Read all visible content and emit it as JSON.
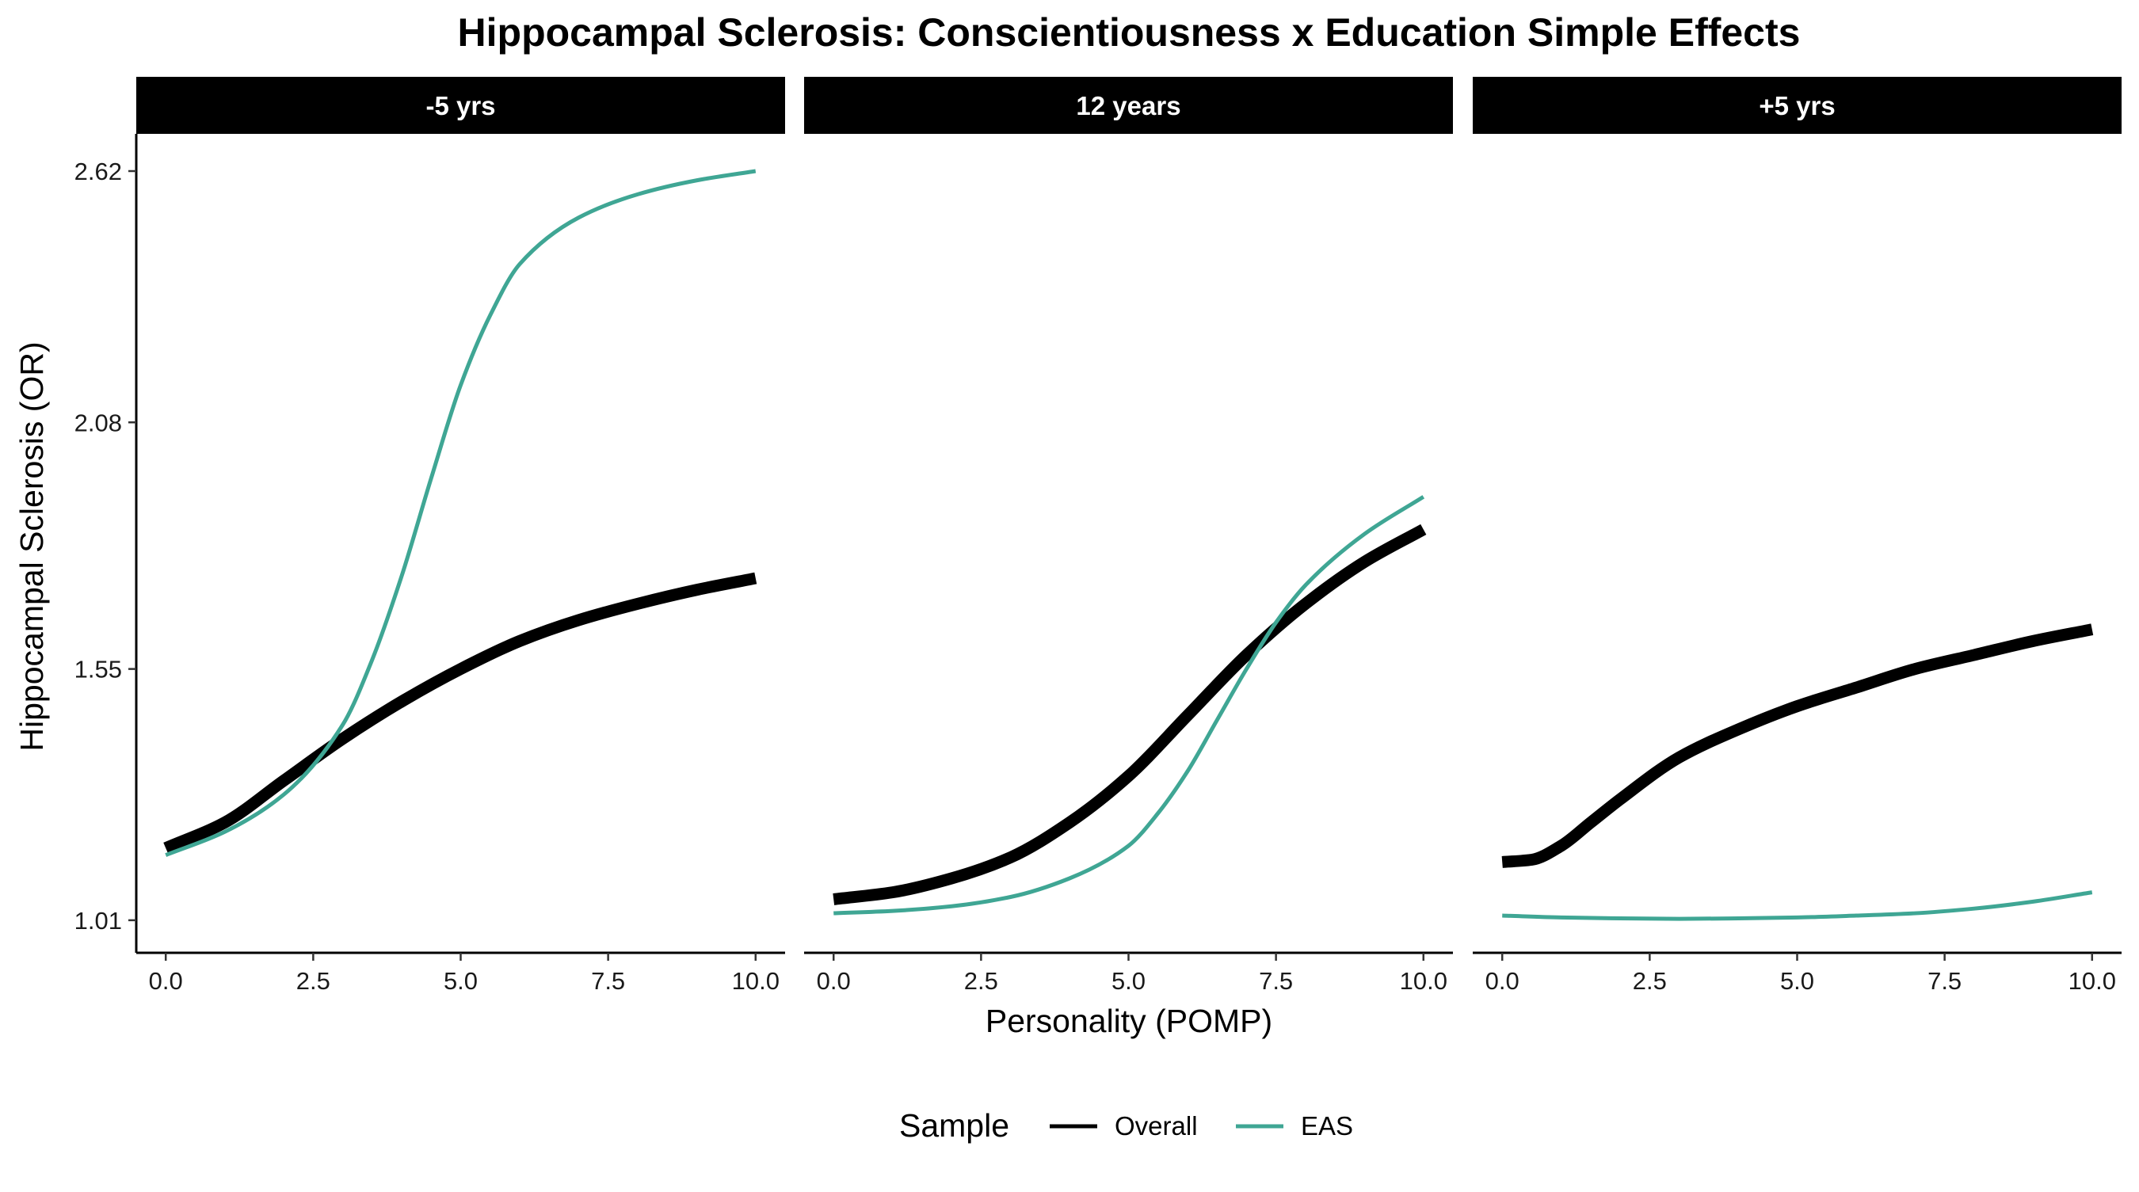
{
  "chart_data": {
    "type": "line",
    "title": "Hippocampal Sclerosis: Conscientiousness x Education Simple Effects",
    "xlabel": "Personality (POMP)",
    "ylabel": "Hippocampal Sclerosis (OR)",
    "xlim": [
      -0.5,
      10.5
    ],
    "ylim": [
      0.94,
      2.7
    ],
    "x_ticks": [
      0.0,
      2.5,
      5.0,
      7.5,
      10.0
    ],
    "x_tick_labels": [
      "0.0",
      "2.5",
      "5.0",
      "7.5",
      "10.0"
    ],
    "y_ticks": [
      1.01,
      1.55,
      2.08,
      2.62
    ],
    "y_tick_labels": [
      "1.01",
      "1.55",
      "2.08",
      "2.62"
    ],
    "grid": false,
    "legend": {
      "title": "Sample",
      "position": "bottom",
      "entries": [
        {
          "name": "Overall",
          "color": "#000000"
        },
        {
          "name": "EAS",
          "color": "#3fa694"
        }
      ]
    },
    "panels": [
      {
        "label": "-5 yrs",
        "series": [
          {
            "name": "Overall",
            "color": "#000000",
            "x": [
              0,
              1,
              2,
              3,
              4,
              5,
              6,
              7,
              8,
              9,
              10
            ],
            "y": [
              1.165,
              1.22,
              1.31,
              1.4,
              1.48,
              1.55,
              1.61,
              1.655,
              1.69,
              1.72,
              1.745
            ]
          },
          {
            "name": "EAS",
            "color": "#3fa694",
            "x": [
              0,
              1,
              2,
              3,
              3.5,
              4,
              4.5,
              5,
              5.5,
              6,
              7,
              8,
              9,
              10
            ],
            "y": [
              1.15,
              1.2,
              1.28,
              1.43,
              1.57,
              1.75,
              1.96,
              2.16,
              2.31,
              2.42,
              2.52,
              2.57,
              2.6,
              2.62
            ]
          }
        ]
      },
      {
        "label": "12 years",
        "series": [
          {
            "name": "Overall",
            "color": "#000000",
            "x": [
              0,
              1,
              2,
              3,
              4,
              5,
              6,
              7,
              8,
              9,
              10
            ],
            "y": [
              1.055,
              1.07,
              1.1,
              1.145,
              1.22,
              1.32,
              1.45,
              1.58,
              1.69,
              1.78,
              1.85
            ]
          },
          {
            "name": "EAS",
            "color": "#3fa694",
            "x": [
              0,
              1,
              2,
              3,
              4,
              5,
              5.5,
              6,
              6.5,
              7,
              7.5,
              8,
              9,
              10
            ],
            "y": [
              1.025,
              1.03,
              1.04,
              1.06,
              1.1,
              1.17,
              1.24,
              1.33,
              1.44,
              1.55,
              1.65,
              1.73,
              1.84,
              1.92
            ]
          }
        ]
      },
      {
        "label": "+5 yrs",
        "series": [
          {
            "name": "Overall",
            "color": "#000000",
            "x": [
              0,
              0.5,
              1,
              1.5,
              2,
              3,
              4,
              5,
              6,
              7,
              8,
              9,
              10
            ],
            "y": [
              1.135,
              1.14,
              1.17,
              1.22,
              1.27,
              1.36,
              1.42,
              1.47,
              1.51,
              1.55,
              1.58,
              1.61,
              1.635
            ]
          },
          {
            "name": "EAS",
            "color": "#3fa694",
            "x": [
              0,
              1,
              2,
              3,
              4,
              5,
              6,
              7,
              8,
              9,
              10
            ],
            "y": [
              1.02,
              1.016,
              1.014,
              1.013,
              1.014,
              1.016,
              1.02,
              1.025,
              1.035,
              1.05,
              1.07
            ]
          }
        ]
      }
    ]
  }
}
